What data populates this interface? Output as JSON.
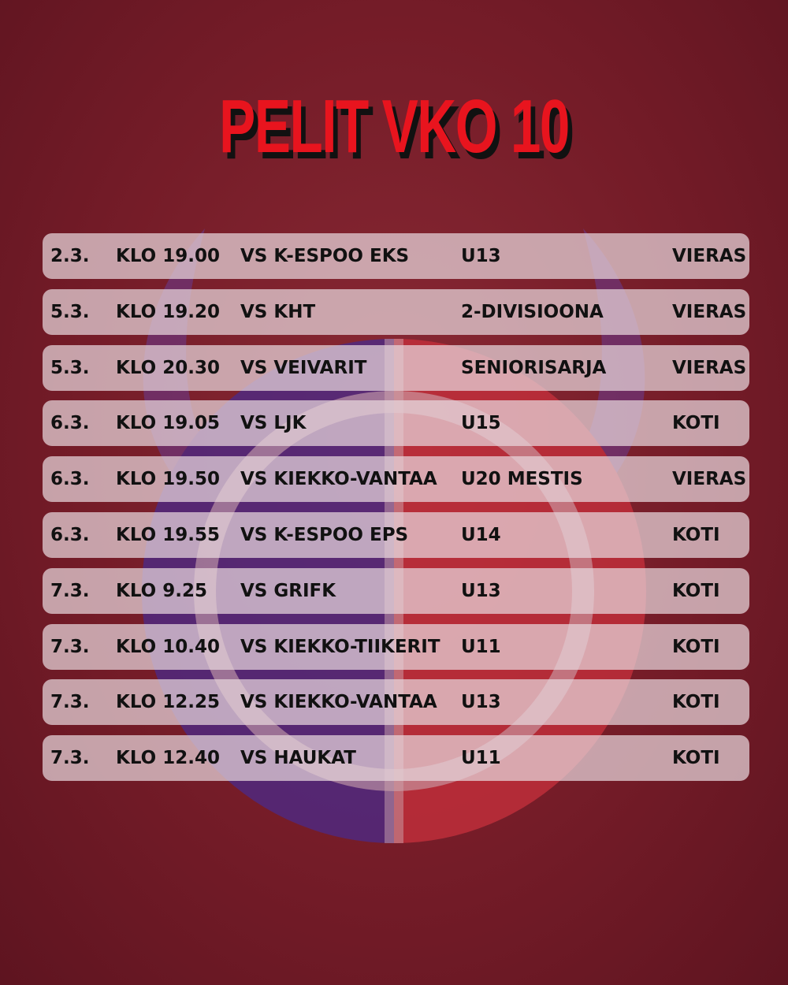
{
  "title": "PELIT VKO 10",
  "colors": {
    "title": "#e8141e",
    "background": "#751c28",
    "logo_red": "#d83040",
    "logo_purple": "#4a2a8a"
  },
  "games": [
    {
      "date": "2.3.",
      "time": "KLO 19.00",
      "opponent": "VS K-ESPOO EKS",
      "series": "U13",
      "location": "VIERAS"
    },
    {
      "date": "5.3.",
      "time": "KLO 19.20",
      "opponent": "VS KHT",
      "series": "2-DIVISIOONA",
      "location": "VIERAS"
    },
    {
      "date": "5.3.",
      "time": "KLO 20.30",
      "opponent": "VS VEIVARIT",
      "series": "SENIORISARJA",
      "location": "VIERAS"
    },
    {
      "date": "6.3.",
      "time": "KLO 19.05",
      "opponent": "VS LJK",
      "series": "U15",
      "location": "KOTI"
    },
    {
      "date": "6.3.",
      "time": "KLO 19.50",
      "opponent": "VS KIEKKO-VANTAA",
      "series": "U20 MESTIS",
      "location": "VIERAS"
    },
    {
      "date": "6.3.",
      "time": "KLO 19.55",
      "opponent": "VS K-ESPOO EPS",
      "series": "U14",
      "location": "KOTI"
    },
    {
      "date": "7.3.",
      "time": "KLO 9.25",
      "opponent": "VS GRIFK",
      "series": "U13",
      "location": "KOTI"
    },
    {
      "date": "7.3.",
      "time": "KLO 10.40",
      "opponent": "VS KIEKKO-TIIKERIT",
      "series": "U11",
      "location": "KOTI"
    },
    {
      "date": "7.3.",
      "time": "KLO 12.25",
      "opponent": "VS KIEKKO-VANTAA",
      "series": "U13",
      "location": "KOTI"
    },
    {
      "date": "7.3.",
      "time": "KLO 12.40",
      "opponent": "VS HAUKAT",
      "series": "U11",
      "location": "KOTI"
    }
  ]
}
